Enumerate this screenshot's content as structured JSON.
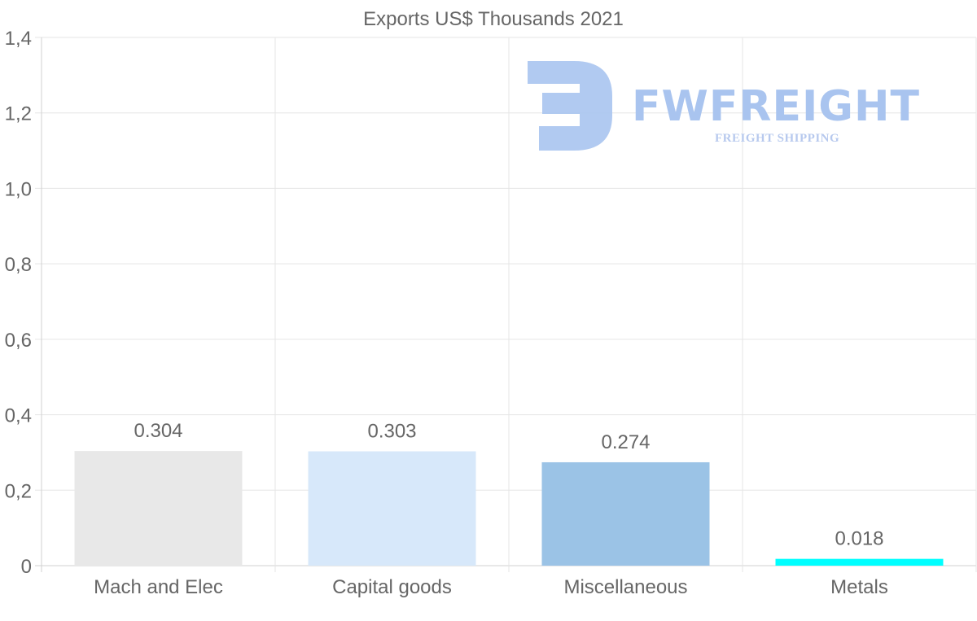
{
  "chart_data": {
    "type": "bar",
    "title": "Exports US$ Thousands 2021",
    "categories": [
      "Mach and Elec",
      "Capital goods",
      "Miscellaneous",
      "Metals"
    ],
    "values": [
      0.304,
      0.303,
      0.274,
      0.018
    ],
    "value_labels": [
      "0.304",
      "0.303",
      "0.274",
      "0.018"
    ],
    "bar_colors": [
      "#e8e8e8",
      "#d7e8fa",
      "#9bc3e6",
      "#00ffff"
    ],
    "ylim": [
      0,
      1.4
    ],
    "y_ticks": [
      0,
      0.2,
      0.4,
      0.6,
      0.8,
      1.0,
      1.2,
      1.4
    ],
    "y_tick_labels": [
      "0",
      "0,2",
      "0,4",
      "0,6",
      "0,8",
      "1,0",
      "1,2",
      "1,4"
    ],
    "xlabel": "",
    "ylabel": "",
    "grid": true,
    "legend": "none"
  },
  "watermark": {
    "brand": "FWFREIGHT",
    "tagline": "FREIGHT SHIPPING",
    "logo_icon": "fw-logo-icon",
    "color": "#a9c4ef"
  },
  "colors": {
    "grid": "#e5e5e5",
    "text": "#666666",
    "axis": "#d0d0d0"
  }
}
